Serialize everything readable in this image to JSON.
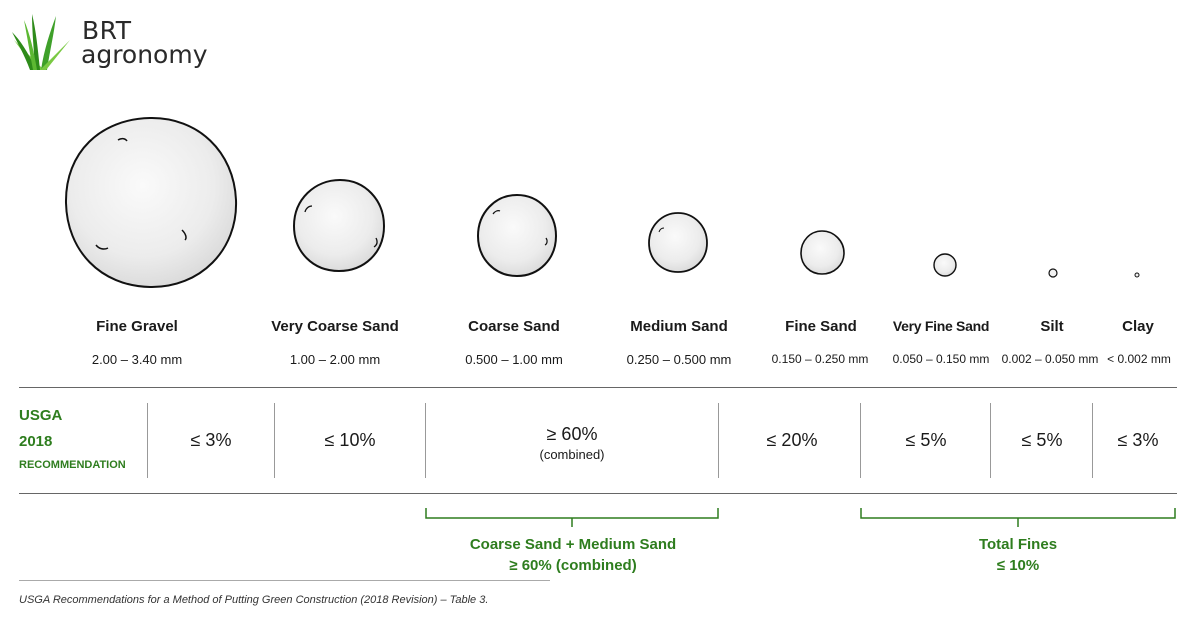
{
  "logo": {
    "line1": "BRT",
    "line2": "agronomy",
    "colors": {
      "green_dark": "#2e8b1a",
      "green_light": "#7ac943"
    }
  },
  "particles": [
    {
      "name": "Fine Gravel",
      "size": "2.00 – 3.40 mm"
    },
    {
      "name": "Very Coarse Sand",
      "size": "1.00 – 2.00 mm"
    },
    {
      "name": "Coarse Sand",
      "size": "0.500 – 1.00 mm"
    },
    {
      "name": "Medium Sand",
      "size": "0.250 – 0.500 mm"
    },
    {
      "name": "Fine Sand",
      "size": "0.150 – 0.250 mm"
    },
    {
      "name": "Very Fine Sand",
      "size": "0.050 – 0.150 mm"
    },
    {
      "name": "Silt",
      "size": "0.002 – 0.050 mm"
    },
    {
      "name": "Clay",
      "size": "< 0.002 mm"
    }
  ],
  "recommendation": {
    "label": {
      "line1": "USGA",
      "line2": "2018",
      "line3": "RECOMMENDATION"
    },
    "values": [
      "≤ 3%",
      "≤ 10%",
      "≥ 60%",
      "≤ 20%",
      "≤ 5%",
      "≤ 5%",
      "≤ 3%"
    ],
    "combined_note": "(combined)"
  },
  "groups": [
    {
      "line1": "Coarse Sand + Medium Sand",
      "line2": "≥ 60% (combined)"
    },
    {
      "line1": "Total Fines",
      "line2": "≤ 10%"
    }
  ],
  "caption": "USGA Recommendations for a Method of Putting Green Construction (2018 Revision) – Table 3.",
  "accent_color": "#2e7d1e"
}
